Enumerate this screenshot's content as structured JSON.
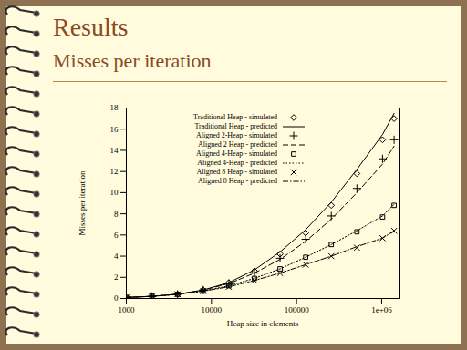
{
  "chart_data": {
    "type": "line",
    "title": "Results",
    "subtitle": "Misses per iteration",
    "x_label": "Heap size in elements",
    "y_label": "Misses per iteration",
    "log": "x",
    "grid": false,
    "legend": "top-left",
    "x": [
      1000,
      2000,
      4000,
      8000,
      16000,
      32000,
      64000,
      128000,
      256000,
      512000,
      1024000,
      1400000
    ],
    "xlim": [
      1000,
      1600000
    ],
    "xticks": [
      1000,
      10000,
      100000,
      {
        "value": 1000000,
        "label": "1e+06"
      }
    ],
    "ylim": [
      0,
      18
    ],
    "yticks": [
      0,
      2,
      4,
      6,
      8,
      10,
      12,
      14,
      16,
      18
    ],
    "series": [
      {
        "name": "Traditional Heap - simulated",
        "type": "scatter",
        "marker": "diamond",
        "color": "#000000",
        "values": [
          0.1,
          0.2,
          0.4,
          0.8,
          1.5,
          2.6,
          4.2,
          6.2,
          8.8,
          11.8,
          15.0,
          17.0
        ]
      },
      {
        "name": "Traditional Heap - predicted",
        "type": "line",
        "line_style": "solid",
        "color": "#000000",
        "values": [
          0.1,
          0.2,
          0.4,
          0.8,
          1.5,
          2.7,
          4.4,
          6.5,
          9.1,
          12.2,
          15.5,
          17.5
        ]
      },
      {
        "name": "Aligned 2-Heap - simulated",
        "type": "scatter",
        "marker": "plus",
        "color": "#000000",
        "values": [
          0.1,
          0.2,
          0.4,
          0.8,
          1.4,
          2.4,
          3.8,
          5.6,
          7.8,
          10.4,
          13.2,
          15.0
        ]
      },
      {
        "name": "Aligned 2 Heap - predicted",
        "type": "line",
        "line_style": "dashed",
        "color": "#000000",
        "values": [
          0.1,
          0.2,
          0.4,
          0.8,
          1.4,
          2.4,
          3.7,
          5.4,
          7.5,
          10.0,
          12.7,
          14.4
        ]
      },
      {
        "name": "Aligned 4-Heap - simulated",
        "type": "scatter",
        "marker": "square",
        "color": "#000000",
        "values": [
          0.1,
          0.2,
          0.4,
          0.7,
          1.2,
          1.9,
          2.8,
          3.9,
          5.1,
          6.3,
          7.7,
          8.8
        ]
      },
      {
        "name": "Aligned 4-Heap - predicted",
        "type": "line",
        "line_style": "dotted",
        "color": "#000000",
        "values": [
          0.1,
          0.2,
          0.4,
          0.7,
          1.2,
          1.9,
          2.8,
          3.9,
          5.1,
          6.4,
          7.8,
          8.9
        ]
      },
      {
        "name": "Aligned 8 Heap - simulated",
        "type": "scatter",
        "marker": "times",
        "color": "#000000",
        "values": [
          0.1,
          0.2,
          0.4,
          0.7,
          1.1,
          1.7,
          2.4,
          3.2,
          4.0,
          4.8,
          5.7,
          6.4
        ]
      },
      {
        "name": "Aligned 8 Heap - predicted",
        "type": "line",
        "line_style": "dashdot",
        "color": "#000000",
        "values": [
          0.1,
          0.2,
          0.4,
          0.7,
          1.1,
          1.7,
          2.4,
          3.2,
          4.0,
          4.9,
          5.7,
          6.4
        ]
      }
    ]
  }
}
